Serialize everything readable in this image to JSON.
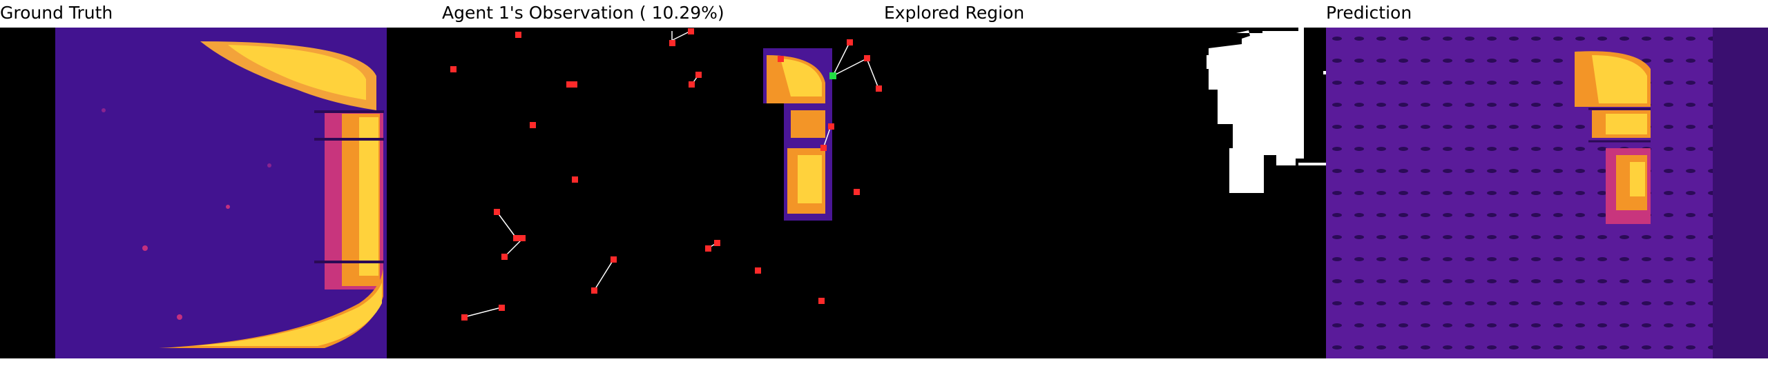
{
  "panels": [
    {
      "title": "Ground Truth"
    },
    {
      "title": "Agent 1's Observation ( 10.29%)"
    },
    {
      "title": "Explored Region"
    },
    {
      "title": "Prediction"
    }
  ],
  "colors": {
    "background": "#000000",
    "map_low": "#3a0f8a",
    "map_mid": "#b02a8c",
    "map_high": "#ffd23c",
    "agent": "#ff2a2a",
    "current_agent": "#22dd44",
    "path": "#ffffff",
    "explored": "#ffffff"
  },
  "icons": {
    "agent": "red-square-marker-icon",
    "current_agent": "green-square-marker-icon"
  }
}
